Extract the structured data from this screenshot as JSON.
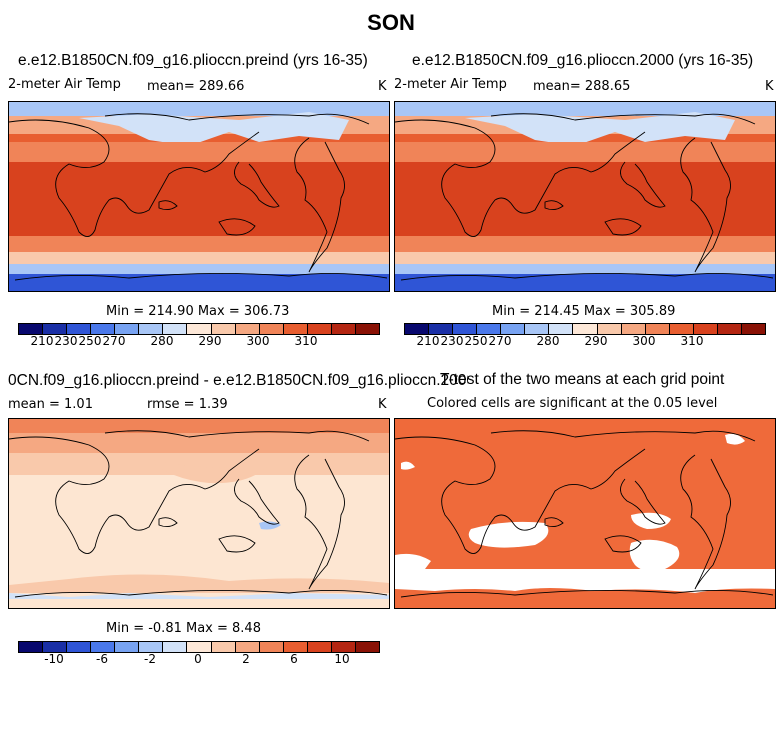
{
  "title": "SON",
  "panels": [
    {
      "id": "preind",
      "title": "e.e12.B1850CN.f09_g16.plioccn.preind (yrs 16-35)",
      "variable": "2-meter Air Temp",
      "stat_text": "mean=  289.66",
      "units": "K",
      "minmax": "Min = 214.90 Max = 306.73"
    },
    {
      "id": "p2000",
      "title": "e.e12.B1850CN.f09_g16.plioccn.2000 (yrs 16-35)",
      "variable": "2-meter Air Temp",
      "stat_text": "mean=  288.65",
      "units": "K",
      "minmax": "Min = 214.45 Max = 305.89"
    },
    {
      "id": "diff",
      "title": "0CN.f09_g16.plioccn.preind - e.e12.B1850CN.f09_g16.plioccn.2000",
      "mean_text": "mean =    1.01",
      "rmse_text": "rmse =    1.39",
      "units": "K",
      "minmax": "Min =  -0.81 Max =   8.48"
    },
    {
      "id": "ttest",
      "title": "T-test of the two means at each grid point",
      "subtitle": "Colored cells are significant at the 0.05 level"
    }
  ],
  "colorbars": {
    "abs": {
      "colors": [
        "#08086e",
        "#1a2fa6",
        "#2f55d6",
        "#4a78ea",
        "#78a3f2",
        "#a8c6f6",
        "#d2e2f8",
        "#fde8d8",
        "#f9c9ab",
        "#f5a882",
        "#f08458",
        "#e85e30",
        "#d8421e",
        "#b42612",
        "#8a1206"
      ],
      "ticks": [
        "210",
        "230",
        "250",
        "270",
        "280",
        "290",
        "300",
        "310"
      ]
    },
    "diff": {
      "colors": [
        "#08086e",
        "#1a2fa6",
        "#2f55d6",
        "#4a78ea",
        "#78a3f2",
        "#a8c6f6",
        "#d2e2f8",
        "#fde8d8",
        "#f9c9ab",
        "#f5a882",
        "#f08458",
        "#e85e30",
        "#d8421e",
        "#b42612",
        "#8a1206"
      ],
      "ticks": [
        "-10",
        "-6",
        "-2",
        "0",
        "2",
        "6",
        "10"
      ]
    }
  },
  "colors": {
    "warm": "#ea5a2a",
    "hot": "#d7401c",
    "pale": "#fde6d2",
    "cold": "#2f55d6",
    "signif": "#ef6a3a"
  }
}
